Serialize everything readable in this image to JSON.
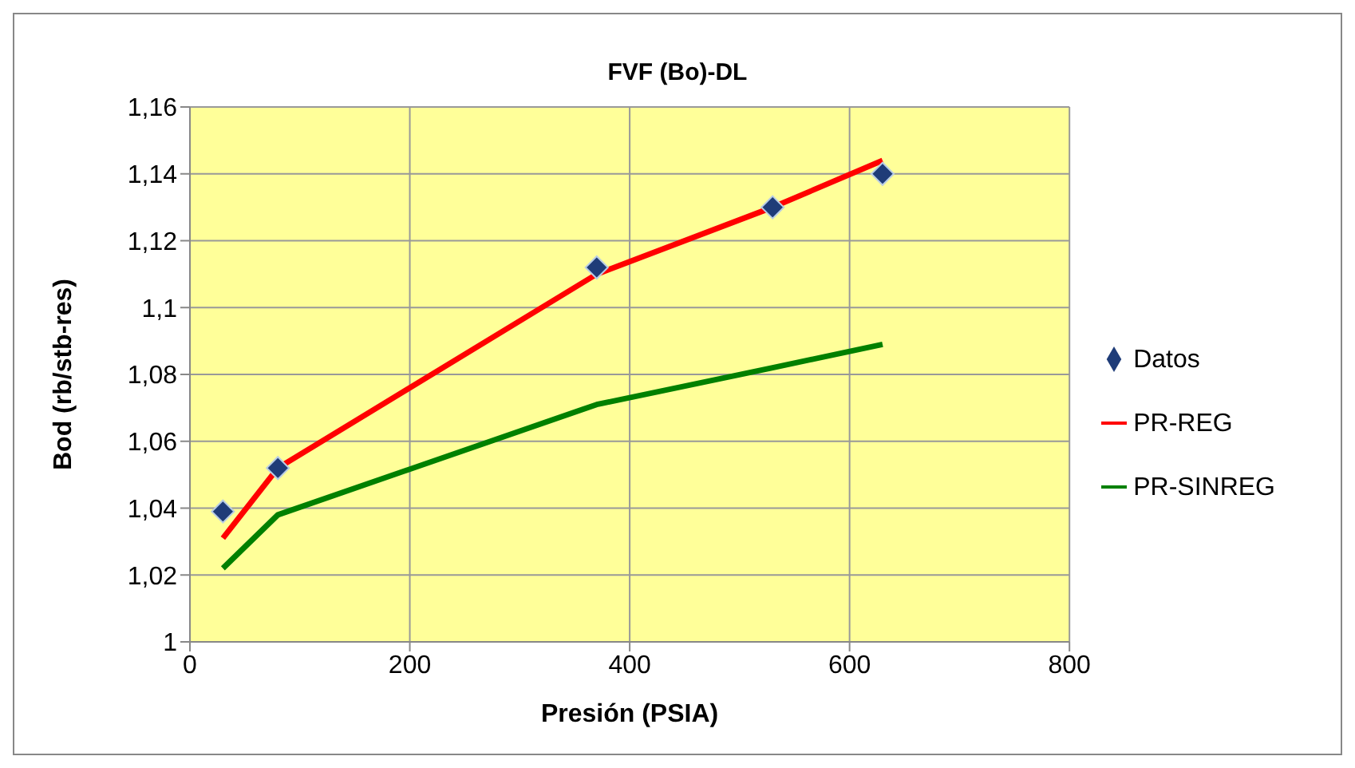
{
  "chart_data": {
    "type": "line",
    "title": "FVF (Bo)-DL",
    "xlabel": "Presión (PSIA)",
    "ylabel": "Bod (rb/stb-res)",
    "xlim": [
      0,
      800
    ],
    "xticks": [
      0,
      200,
      400,
      600,
      800
    ],
    "ylim": [
      1,
      1.16
    ],
    "yticks": [
      {
        "value": 1,
        "label": "1"
      },
      {
        "value": 1.02,
        "label": "1,02"
      },
      {
        "value": 1.04,
        "label": "1,04"
      },
      {
        "value": 1.06,
        "label": "1,06"
      },
      {
        "value": 1.08,
        "label": "1,08"
      },
      {
        "value": 1.1,
        "label": "1,1"
      },
      {
        "value": 1.12,
        "label": "1,12"
      },
      {
        "value": 1.14,
        "label": "1,14"
      },
      {
        "value": 1.16,
        "label": "1,16"
      }
    ],
    "grid": true,
    "legend": "right",
    "series": [
      {
        "name": "Datos",
        "type": "scatter",
        "marker": "diamond",
        "color": "#1f3c78",
        "x": [
          30,
          80,
          370,
          530,
          630
        ],
        "values": [
          1.039,
          1.052,
          1.112,
          1.13,
          1.14
        ]
      },
      {
        "name": "PR-REG",
        "marker": "none",
        "color": "#ff0000",
        "x": [
          30,
          80,
          370,
          530,
          630
        ],
        "values": [
          1.031,
          1.052,
          1.11,
          1.13,
          1.144
        ]
      },
      {
        "name": "PR-SINREG",
        "marker": "none",
        "color": "#008000",
        "x": [
          30,
          80,
          370,
          530,
          630
        ],
        "values": [
          1.022,
          1.038,
          1.071,
          1.082,
          1.089
        ]
      }
    ]
  }
}
